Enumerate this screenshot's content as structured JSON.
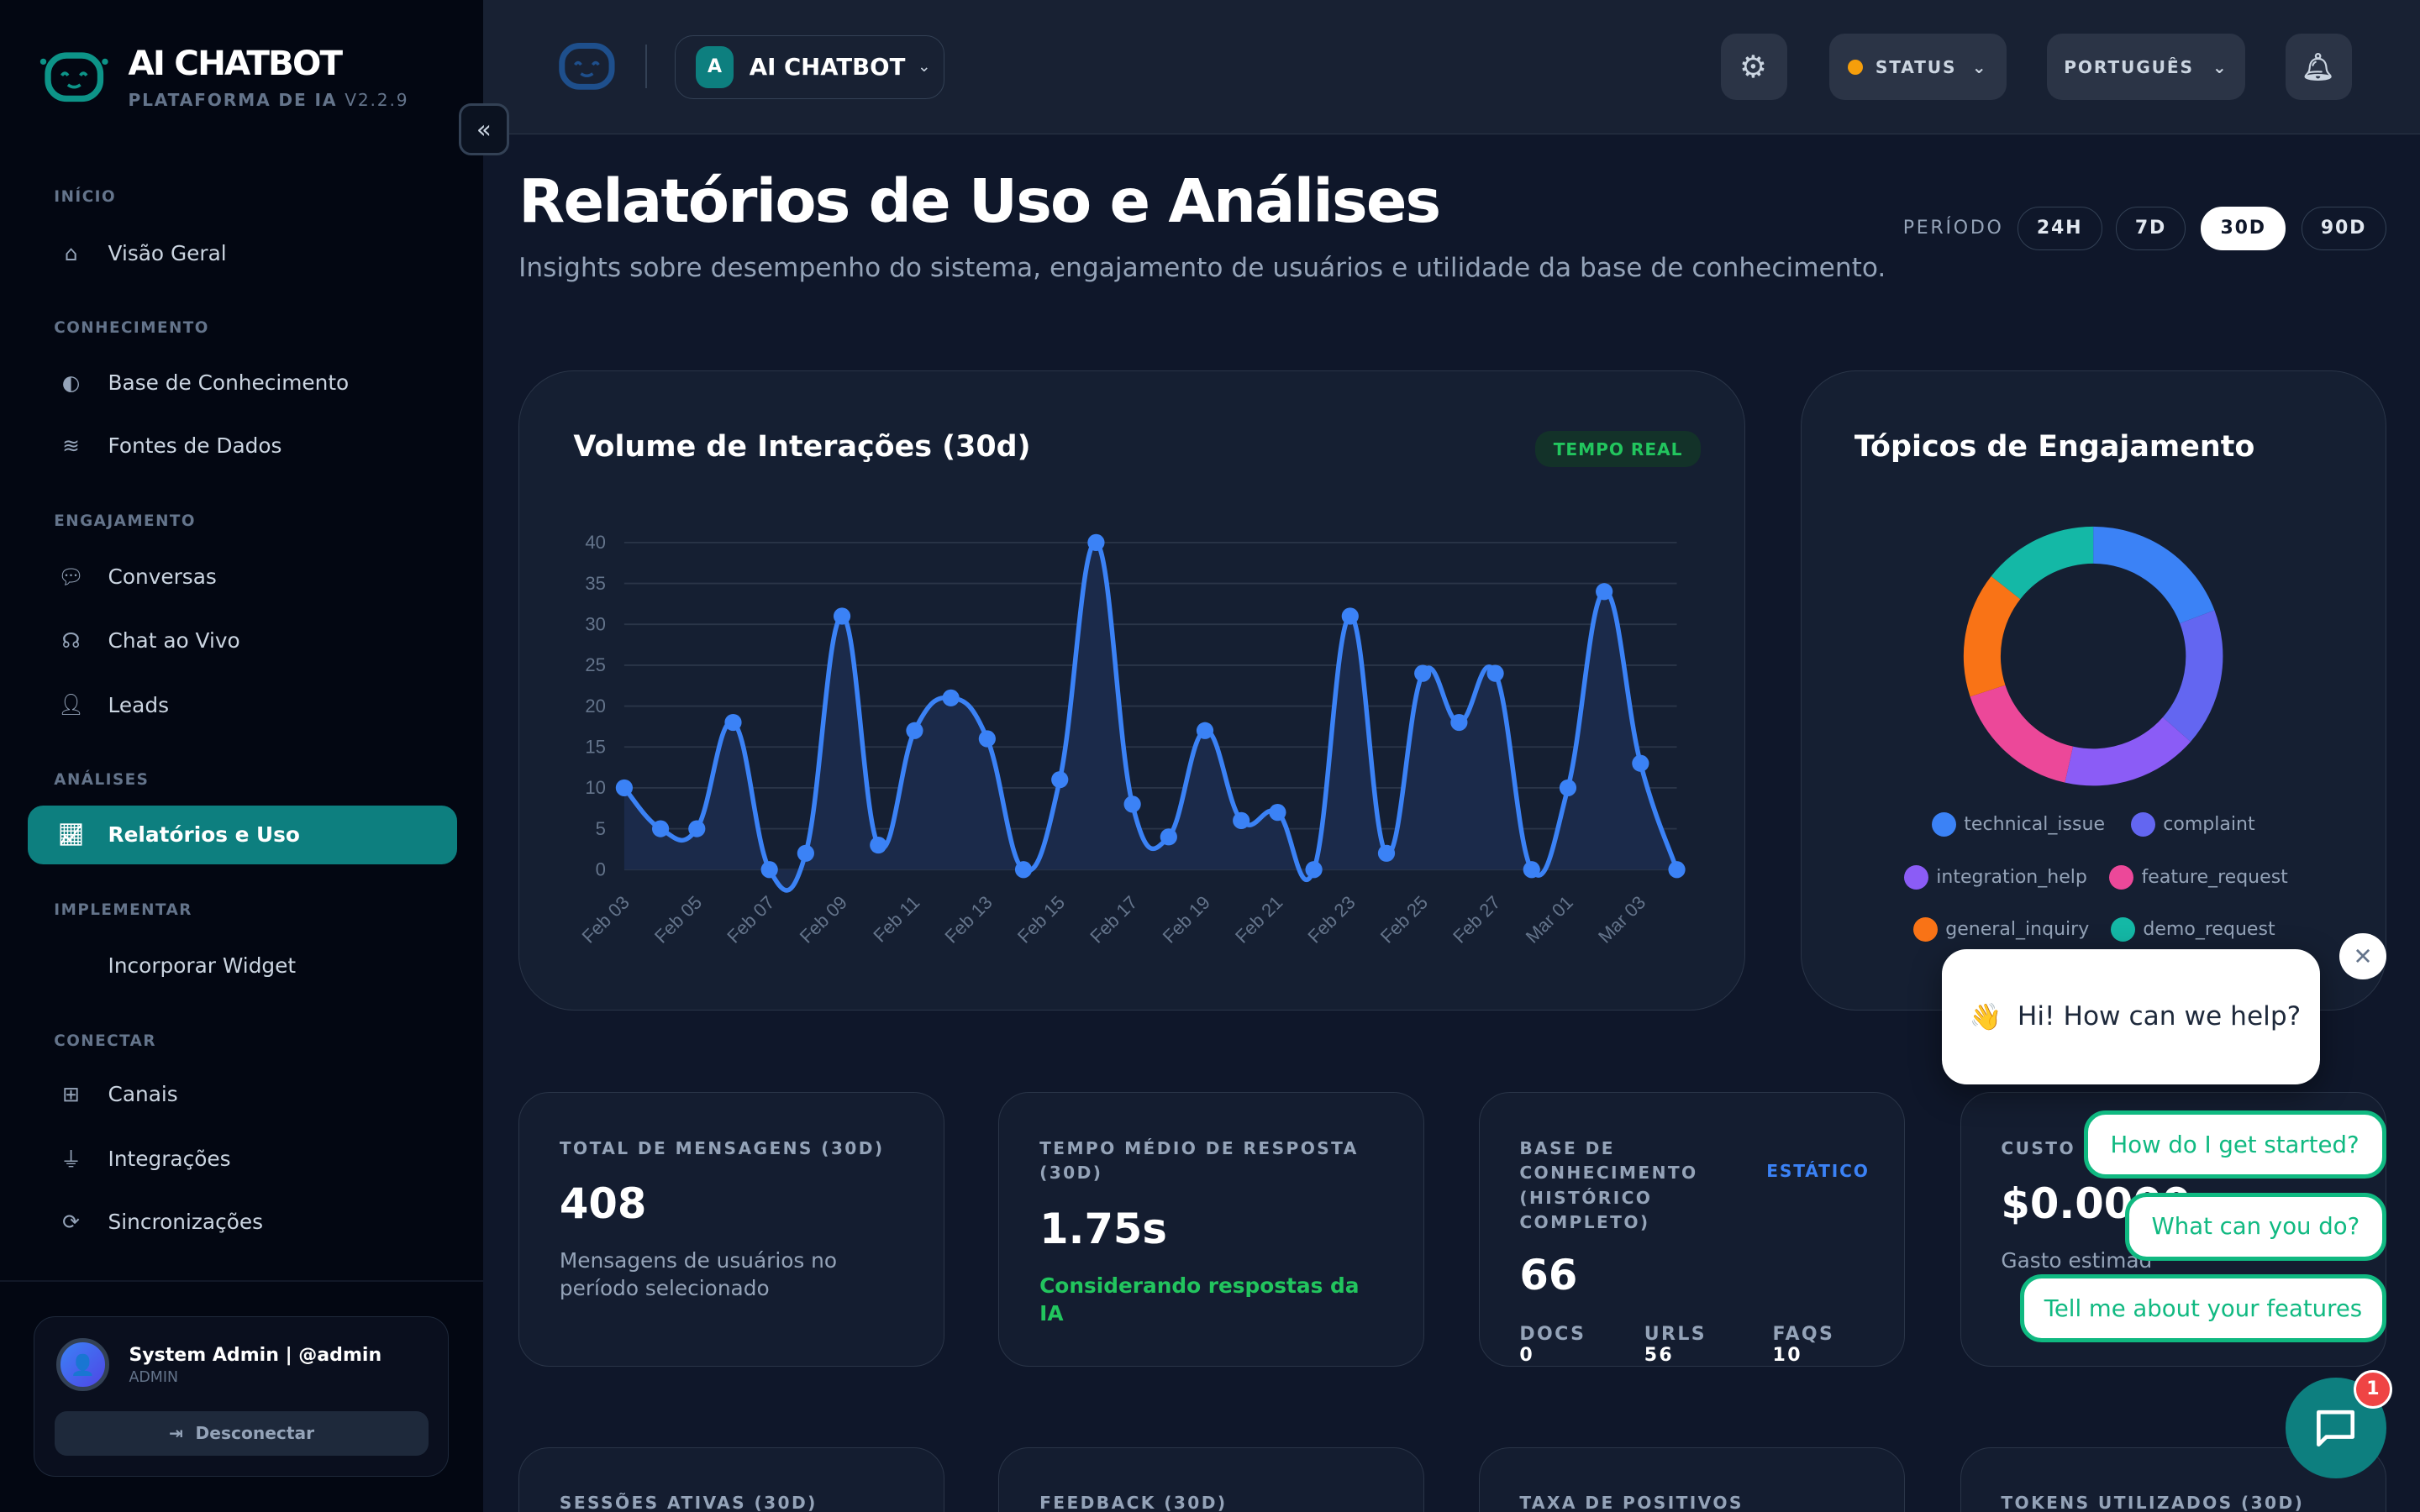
{
  "brand": {
    "title": "AI CHATBOT",
    "subtitle": "PLATAFORMA DE IA",
    "version": "V2.2.9"
  },
  "sidebar": {
    "sections": [
      {
        "label": "INÍCIO",
        "items": [
          {
            "label": "Visão Geral",
            "icon": "home-icon"
          }
        ]
      },
      {
        "label": "CONHECIMENTO",
        "items": [
          {
            "label": "Base de Conhecimento",
            "icon": "brain-icon"
          },
          {
            "label": "Fontes de Dados",
            "icon": "database-icon"
          }
        ]
      },
      {
        "label": "ENGAJAMENTO",
        "items": [
          {
            "label": "Conversas",
            "icon": "comments-icon"
          },
          {
            "label": "Chat ao Vivo",
            "icon": "headset-icon"
          },
          {
            "label": "Leads",
            "icon": "user-check-icon"
          }
        ]
      },
      {
        "label": "ANÁLISES",
        "items": [
          {
            "label": "Relatórios e Uso",
            "icon": "chart-line-icon",
            "active": true
          }
        ]
      },
      {
        "label": "IMPLEMENTAR",
        "items": [
          {
            "label": "Incorporar Widget",
            "icon": "code-icon"
          }
        ]
      },
      {
        "label": "CONECTAR",
        "items": [
          {
            "label": "Canais",
            "icon": "network-icon"
          },
          {
            "label": "Integrações",
            "icon": "plug-icon"
          },
          {
            "label": "Sincronizações",
            "icon": "sync-icon"
          }
        ]
      }
    ],
    "user": {
      "name": "System Admin | @admin",
      "role": "ADMIN",
      "logout": "Desconectar"
    }
  },
  "topbar": {
    "workspace_badge": "A",
    "workspace": "AI CHATBOT",
    "status": "STATUS",
    "status_color": "#f59e0b",
    "language": "PORTUGUÊS"
  },
  "page": {
    "title": "Relatórios de Uso e Análises",
    "subtitle": "Insights sobre desempenho do sistema, engajamento de usuários e utilidade da base de conhecimento.",
    "period_label": "PERÍODO",
    "periods": [
      "24H",
      "7D",
      "30D",
      "90D"
    ],
    "active_period": "30D"
  },
  "chart_data": [
    {
      "type": "line",
      "title": "Volume de Interações (30d)",
      "badge": "TEMPO REAL",
      "color": "#3b82f6",
      "area": true,
      "grid": true,
      "ylim": [
        0,
        40
      ],
      "yticks": [
        0,
        5,
        10,
        15,
        20,
        25,
        30,
        35,
        40
      ],
      "x": [
        "Feb 03",
        "Feb 04",
        "Feb 05",
        "Feb 06",
        "Feb 07",
        "Feb 08",
        "Feb 09",
        "Feb 10",
        "Feb 11",
        "Feb 12",
        "Feb 13",
        "Feb 14",
        "Feb 15",
        "Feb 16",
        "Feb 17",
        "Feb 18",
        "Feb 19",
        "Feb 20",
        "Feb 21",
        "Feb 22",
        "Feb 23",
        "Feb 24",
        "Feb 25",
        "Feb 26",
        "Feb 27",
        "Feb 28",
        "Mar 01",
        "Mar 02",
        "Mar 03",
        "Mar 04"
      ],
      "xticks": [
        "Feb 03",
        "Feb 05",
        "Feb 07",
        "Feb 09",
        "Feb 11",
        "Feb 13",
        "Feb 15",
        "Feb 17",
        "Feb 19",
        "Feb 21",
        "Feb 23",
        "Feb 25",
        "Feb 27",
        "Mar 01",
        "Mar 03"
      ],
      "values": [
        10,
        5,
        5,
        18,
        0,
        2,
        31,
        3,
        17,
        21,
        16,
        0,
        11,
        40,
        8,
        4,
        17,
        6,
        7,
        0,
        31,
        2,
        24,
        18,
        24,
        0,
        10,
        34,
        13,
        0
      ]
    },
    {
      "type": "pie",
      "donut": true,
      "title": "Tópicos de Engajamento",
      "legend": "bottom",
      "slices": [
        {
          "name": "technical_issue",
          "value": 19.2,
          "color": "#3b82f6"
        },
        {
          "name": "complaint",
          "value": 17.2,
          "color": "#6366f1"
        },
        {
          "name": "integration_help",
          "value": 17.0,
          "color": "#8b5cf6"
        },
        {
          "name": "feature_request",
          "value": 16.4,
          "color": "#ec4899"
        },
        {
          "name": "general_inquiry",
          "value": 15.6,
          "color": "#f97316"
        },
        {
          "name": "demo_request",
          "value": 14.4,
          "color": "#14b8a6"
        }
      ]
    }
  ],
  "stats": [
    {
      "label": "TOTAL DE MENSAGENS (30D)",
      "value": "408",
      "desc": "Mensagens de usuários no período selecionado"
    },
    {
      "label": "TEMPO MÉDIO DE RESPOSTA (30D)",
      "value": "1.75s",
      "desc": "Considerando respostas da IA"
    },
    {
      "label": "BASE DE CONHECIMENTO (HISTÓRICO COMPLETO)",
      "badge": "ESTÁTICO",
      "value": "66",
      "docs_label": "DOCS",
      "docs": "0",
      "urls_label": "URLS",
      "urls": "56",
      "faqs_label": "FAQS",
      "faqs": "10"
    },
    {
      "label": "CUSTO D",
      "value": "$0.0000",
      "desc": "Gasto estimad"
    }
  ],
  "stats_bottom": [
    "SESSÕES ATIVAS (30D)",
    "FEEDBACK (30D)",
    "TAXA DE POSITIVOS",
    "TOKENS UTILIZADOS (30D)"
  ],
  "widget": {
    "greeting_emoji": "👋",
    "greeting": "Hi! How can we help?",
    "quick_replies": [
      "How do I get started?",
      "What can you do?",
      "Tell me about your features"
    ],
    "badge": "1"
  }
}
